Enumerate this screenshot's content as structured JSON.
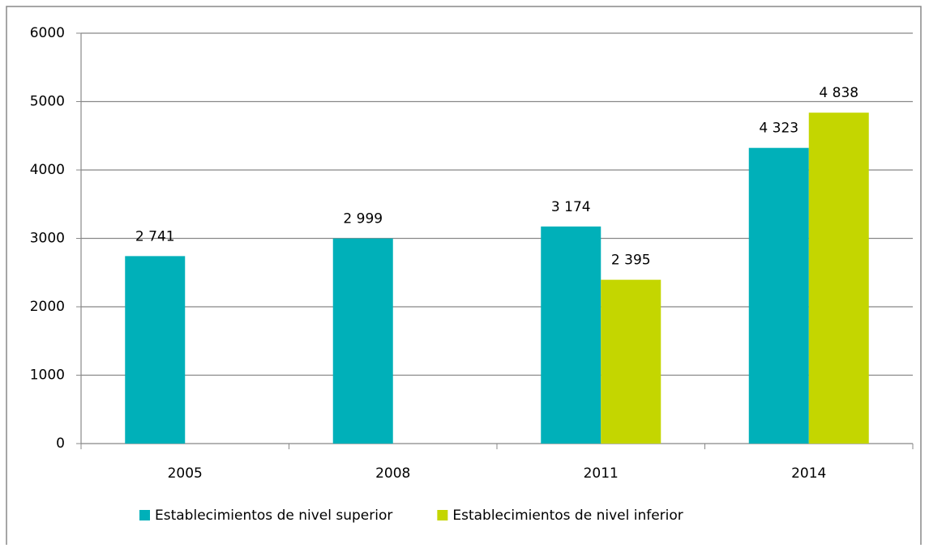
{
  "chart_data": {
    "type": "bar",
    "categories": [
      "2005",
      "2008",
      "2011",
      "2014"
    ],
    "series": [
      {
        "name": "Establecimientos de nivel superior",
        "color": "#00b0b9",
        "values": [
          2741,
          2999,
          3174,
          4323
        ],
        "value_labels": [
          "2 741",
          "2 999",
          "3 174",
          "4 323"
        ]
      },
      {
        "name": "Establecimientos de nivel inferior",
        "color": "#c4d600",
        "values": [
          null,
          null,
          2395,
          4838
        ],
        "value_labels": [
          null,
          null,
          "2 395",
          "4 838"
        ]
      }
    ],
    "ylim": [
      0,
      6000
    ],
    "yticks": [
      0,
      1000,
      2000,
      3000,
      4000,
      5000,
      6000
    ],
    "grid": true,
    "legend": "bottom"
  }
}
